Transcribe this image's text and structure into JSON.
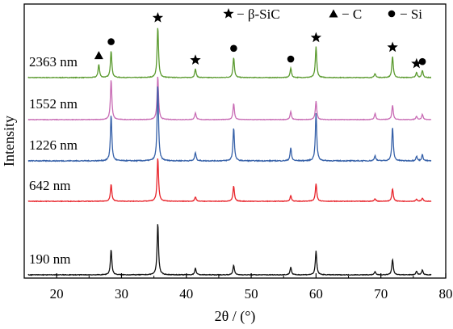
{
  "chart_data": {
    "type": "line",
    "xlabel": "2θ / (°)",
    "ylabel": "Intensity",
    "xlim": [
      15,
      80
    ],
    "xticks": [
      20,
      30,
      40,
      50,
      60,
      70,
      80
    ],
    "grid": false,
    "legend_placement": "top-right",
    "legend": [
      {
        "marker": "star",
        "text": "− β-SiC"
      },
      {
        "marker": "triangle",
        "text": "− C"
      },
      {
        "marker": "circle",
        "text": "− Si"
      }
    ],
    "series": [
      {
        "name": "2363 nm",
        "color": "#5a9a2e",
        "peaks": [
          {
            "x": 26.5,
            "h": 0.26
          },
          {
            "x": 28.4,
            "h": 0.53
          },
          {
            "x": 35.6,
            "h": 1.0
          },
          {
            "x": 41.4,
            "h": 0.17
          },
          {
            "x": 47.3,
            "h": 0.4
          },
          {
            "x": 56.1,
            "h": 0.19
          },
          {
            "x": 60.0,
            "h": 0.61
          },
          {
            "x": 69.1,
            "h": 0.08
          },
          {
            "x": 71.8,
            "h": 0.42
          },
          {
            "x": 75.5,
            "h": 0.1
          },
          {
            "x": 76.4,
            "h": 0.14
          }
        ],
        "markers": [
          {
            "x": 26.5,
            "type": "triangle"
          },
          {
            "x": 28.4,
            "type": "circle"
          },
          {
            "x": 35.6,
            "type": "star"
          },
          {
            "x": 41.4,
            "type": "star"
          },
          {
            "x": 47.3,
            "type": "circle"
          },
          {
            "x": 56.1,
            "type": "circle"
          },
          {
            "x": 60.0,
            "type": "star"
          },
          {
            "x": 71.8,
            "type": "star"
          },
          {
            "x": 75.5,
            "type": "star"
          },
          {
            "x": 76.4,
            "type": "circle"
          }
        ]
      },
      {
        "name": "1552 nm",
        "color": "#c86bb4",
        "peaks": [
          {
            "x": 28.4,
            "h": 0.92
          },
          {
            "x": 35.6,
            "h": 1.0
          },
          {
            "x": 41.4,
            "h": 0.16
          },
          {
            "x": 47.3,
            "h": 0.37
          },
          {
            "x": 56.1,
            "h": 0.18
          },
          {
            "x": 60.0,
            "h": 0.42
          },
          {
            "x": 69.1,
            "h": 0.14
          },
          {
            "x": 71.8,
            "h": 0.33
          },
          {
            "x": 75.5,
            "h": 0.08
          },
          {
            "x": 76.4,
            "h": 0.12
          }
        ],
        "markers": []
      },
      {
        "name": "1226 nm",
        "color": "#3560a8",
        "peaks": [
          {
            "x": 28.4,
            "h": 0.61
          },
          {
            "x": 35.6,
            "h": 1.0
          },
          {
            "x": 41.4,
            "h": 0.11
          },
          {
            "x": 47.3,
            "h": 0.44
          },
          {
            "x": 56.1,
            "h": 0.17
          },
          {
            "x": 60.0,
            "h": 0.63
          },
          {
            "x": 69.1,
            "h": 0.07
          },
          {
            "x": 71.8,
            "h": 0.44
          },
          {
            "x": 75.5,
            "h": 0.06
          },
          {
            "x": 76.4,
            "h": 0.08
          }
        ],
        "markers": []
      },
      {
        "name": "642 nm",
        "color": "#e8232a",
        "peaks": [
          {
            "x": 28.4,
            "h": 0.39
          },
          {
            "x": 35.6,
            "h": 1.0
          },
          {
            "x": 41.4,
            "h": 0.1
          },
          {
            "x": 47.3,
            "h": 0.35
          },
          {
            "x": 56.1,
            "h": 0.13
          },
          {
            "x": 60.0,
            "h": 0.41
          },
          {
            "x": 69.1,
            "h": 0.06
          },
          {
            "x": 71.8,
            "h": 0.29
          },
          {
            "x": 75.5,
            "h": 0.05
          },
          {
            "x": 76.4,
            "h": 0.07
          }
        ],
        "markers": []
      },
      {
        "name": "190 nm",
        "color": "#111111",
        "peaks": [
          {
            "x": 28.4,
            "h": 0.49
          },
          {
            "x": 35.6,
            "h": 1.0
          },
          {
            "x": 41.4,
            "h": 0.13
          },
          {
            "x": 47.3,
            "h": 0.19
          },
          {
            "x": 56.1,
            "h": 0.15
          },
          {
            "x": 60.0,
            "h": 0.46
          },
          {
            "x": 69.1,
            "h": 0.06
          },
          {
            "x": 71.8,
            "h": 0.3
          },
          {
            "x": 75.5,
            "h": 0.07
          },
          {
            "x": 76.4,
            "h": 0.09
          }
        ],
        "markers": []
      }
    ]
  }
}
